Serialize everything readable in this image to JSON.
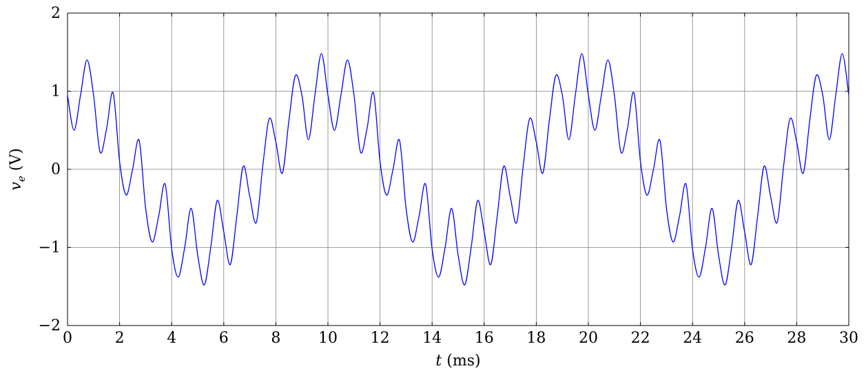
{
  "chart_data": {
    "type": "line",
    "title": "",
    "xlabel": {
      "var": "t",
      "unit": " (ms)"
    },
    "ylabel": {
      "var": "v",
      "sub": "e",
      "unit": " (V)"
    },
    "xlim": [
      0,
      30
    ],
    "ylim": [
      -2,
      2
    ],
    "x_ticks": [
      "0",
      "2",
      "4",
      "6",
      "8",
      "10",
      "12",
      "14",
      "16",
      "18",
      "20",
      "22",
      "24",
      "26",
      "28",
      "30"
    ],
    "y_ticks": [
      "−2",
      "−1",
      "0",
      "1",
      "2"
    ],
    "grid": true,
    "line_color": "#0000ff",
    "grid_color": "#808080",
    "series": [
      {
        "sampling_ms": 0.25,
        "x": [
          0,
          0.25,
          0.5,
          0.75,
          1,
          1.25,
          1.5,
          1.75,
          2,
          2.25,
          2.5,
          2.75,
          3,
          3.25,
          3.5,
          3.75,
          4,
          4.25,
          4.5,
          4.75,
          5,
          5.25,
          5.5,
          5.75,
          6,
          6.25,
          6.5,
          6.75,
          7,
          7.25,
          7.5,
          7.75,
          8,
          8.25,
          8.5,
          8.75,
          9,
          9.25,
          9.5,
          9.75,
          10,
          10.25,
          10.5,
          10.75,
          11,
          11.25,
          11.5,
          11.75,
          12,
          12.25,
          12.5,
          12.75,
          13,
          13.25,
          13.5,
          13.75,
          14,
          14.25,
          14.5,
          14.75,
          15,
          15.25,
          15.5,
          15.75,
          16,
          16.25,
          16.5,
          16.75,
          17,
          17.25,
          17.5,
          17.75,
          18,
          18.25,
          18.5,
          18.75,
          19,
          19.25,
          19.5,
          19.75,
          20,
          20.25,
          20.5,
          20.75,
          21,
          21.25,
          21.5,
          21.75,
          22,
          22.25,
          22.5,
          22.75,
          23,
          23.25,
          23.5,
          23.75,
          24,
          24.25,
          24.5,
          24.75,
          25,
          25.25,
          25.5,
          25.75,
          26,
          26.25,
          26.5,
          26.75,
          27,
          27.25,
          27.5,
          27.75,
          28,
          28.25,
          28.5,
          28.75,
          29,
          29.25,
          29.5,
          29.75,
          30
        ],
        "y": [
          0.95,
          0.5,
          0.95,
          1.4,
          0.95,
          0.22,
          0.52,
          0.98,
          0.1,
          -0.33,
          0.0,
          0.37,
          -0.5,
          -0.93,
          -0.6,
          -0.19,
          -1.02,
          -1.38,
          -1.0,
          -0.5,
          -1.1,
          -1.48,
          -1.0,
          -0.4,
          -0.8,
          -1.22,
          -0.6,
          0.04,
          -0.35,
          -0.68,
          0.05,
          0.65,
          0.35,
          -0.05,
          0.62,
          1.2,
          0.95,
          0.38,
          0.95,
          1.48,
          0.95,
          0.5,
          0.95,
          1.4,
          0.95,
          0.22,
          0.52,
          0.98,
          0.1,
          -0.33,
          0.0,
          0.37,
          -0.5,
          -0.93,
          -0.6,
          -0.19,
          -1.02,
          -1.38,
          -1.0,
          -0.5,
          -1.1,
          -1.48,
          -1.0,
          -0.4,
          -0.8,
          -1.22,
          -0.6,
          0.04,
          -0.35,
          -0.68,
          0.05,
          0.65,
          0.35,
          -0.05,
          0.62,
          1.2,
          0.95,
          0.38,
          0.95,
          1.48,
          0.95,
          0.5,
          0.95,
          1.4,
          0.95,
          0.22,
          0.52,
          0.98,
          0.1,
          -0.33,
          0.0,
          0.37,
          -0.5,
          -0.93,
          -0.6,
          -0.19,
          -1.02,
          -1.38,
          -1.0,
          -0.5,
          -1.1,
          -1.48,
          -1.0,
          -0.4,
          -0.8,
          -1.22,
          -0.6,
          0.04,
          -0.35,
          -0.68,
          0.05,
          0.65,
          0.35,
          -0.05,
          0.62,
          1.2,
          0.95,
          0.38,
          0.95,
          1.48,
          0.95
        ]
      }
    ]
  }
}
